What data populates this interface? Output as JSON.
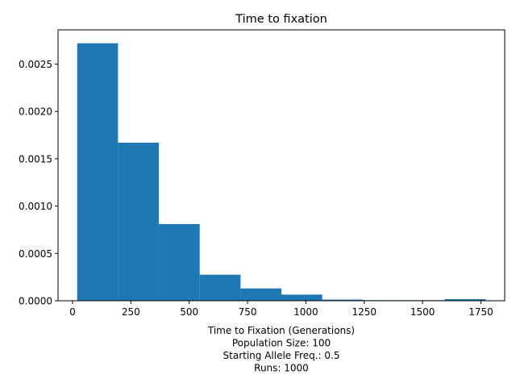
{
  "chart_data": {
    "type": "bar",
    "title": "Time to fixation",
    "xlabel_lines": [
      "Time to Fixation (Generations)",
      "Population Size: 100",
      "Starting Allele Freq.: 0.5",
      "Runs: 1000"
    ],
    "ylabel": "",
    "bin_edges": [
      20,
      195,
      370,
      545,
      720,
      895,
      1070,
      1245,
      1420,
      1595,
      1770
    ],
    "values": [
      0.00272,
      0.00167,
      0.00081,
      0.000275,
      0.00013,
      6.5e-05,
      1.2e-05,
      6e-06,
      6e-06,
      1.7e-05
    ],
    "xlim": [
      -62,
      1852
    ],
    "ylim": [
      0,
      0.002862
    ],
    "xticks": [
      0,
      250,
      500,
      750,
      1000,
      1250,
      1500,
      1750
    ],
    "yticks": [
      0.0,
      0.0005,
      0.001,
      0.0015,
      0.002,
      0.0025
    ],
    "ytick_labels": [
      "0.0000",
      "0.0005",
      "0.0010",
      "0.0015",
      "0.0020",
      "0.0025"
    ],
    "bar_color": "#1f77b4",
    "grid": false
  }
}
